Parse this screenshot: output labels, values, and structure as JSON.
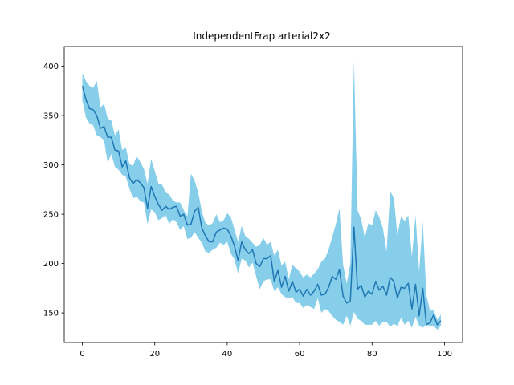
{
  "chart_data": {
    "type": "line",
    "title": "IndependentFrap arterial2x2",
    "xlabel": "",
    "ylabel": "",
    "xlim": [
      -5,
      105
    ],
    "ylim": [
      120,
      420
    ],
    "x_ticks": [
      0,
      20,
      40,
      60,
      80,
      100
    ],
    "y_ticks": [
      150,
      200,
      250,
      300,
      350,
      400
    ],
    "grid": false,
    "legend": "none",
    "colors": {
      "line": "#1f77b4",
      "band": "#87ceeb"
    },
    "series": [
      {
        "x": [
          0,
          1,
          2,
          3,
          4,
          5,
          6,
          7,
          8,
          9,
          10,
          11,
          12,
          13,
          14,
          15,
          16,
          17,
          18,
          19,
          20,
          21,
          22,
          23,
          24,
          25,
          26,
          27,
          28,
          29,
          30,
          31,
          32,
          33,
          34,
          35,
          36,
          37,
          38,
          39,
          40,
          41,
          42,
          43,
          44,
          45,
          46,
          47,
          48,
          49,
          50,
          51,
          52,
          53,
          54,
          55,
          56,
          57,
          58,
          59,
          60,
          61,
          62,
          63,
          64,
          65,
          66,
          67,
          68,
          69,
          70,
          71,
          72,
          73,
          74,
          75,
          76,
          77,
          78,
          79,
          80,
          81,
          82,
          83,
          84,
          85,
          86,
          87,
          88,
          89,
          90,
          91,
          92,
          93,
          94,
          95,
          96,
          97,
          98,
          99
        ],
        "mean": [
          380,
          366,
          357,
          356,
          350,
          337,
          339,
          328,
          328,
          315,
          314,
          298,
          304,
          287,
          281,
          285,
          282,
          277,
          256,
          278,
          268,
          260,
          254,
          258,
          255,
          257,
          258,
          248,
          250,
          239,
          240,
          253,
          257,
          236,
          228,
          222,
          222,
          232,
          234,
          236,
          235,
          228,
          218,
          203,
          222,
          214,
          210,
          214,
          200,
          197,
          205,
          205,
          208,
          182,
          193,
          176,
          187,
          172,
          182,
          171,
          174,
          167,
          174,
          168,
          172,
          179,
          168,
          169,
          176,
          187,
          184,
          194,
          167,
          160,
          162,
          237,
          174,
          178,
          166,
          172,
          169,
          182,
          173,
          177,
          168,
          186,
          182,
          165,
          176,
          175,
          180,
          154,
          179,
          147,
          175,
          138,
          140,
          148,
          138,
          142
        ],
        "upper": [
          393,
          385,
          380,
          378,
          385,
          358,
          362,
          347,
          345,
          330,
          336,
          315,
          318,
          301,
          299,
          309,
          303,
          296,
          281,
          306,
          294,
          281,
          280,
          272,
          270,
          264,
          262,
          262,
          254,
          248,
          291,
          284,
          272,
          253,
          241,
          239,
          241,
          250,
          242,
          244,
          251,
          247,
          235,
          222,
          238,
          228,
          225,
          221,
          217,
          219,
          226,
          219,
          222,
          208,
          214,
          198,
          202,
          184,
          199,
          195,
          192,
          186,
          189,
          186,
          190,
          194,
          202,
          205,
          214,
          227,
          240,
          256,
          199,
          180,
          200,
          406,
          254,
          245,
          226,
          241,
          239,
          254,
          247,
          236,
          212,
          273,
          267,
          229,
          248,
          243,
          249,
          207,
          249,
          192,
          243,
          168,
          152,
          153,
          143,
          148
        ],
        "lower": [
          365,
          348,
          342,
          340,
          330,
          328,
          325,
          302,
          311,
          298,
          295,
          290,
          288,
          276,
          266,
          268,
          263,
          262,
          240,
          255,
          252,
          244,
          246,
          249,
          240,
          245,
          242,
          234,
          238,
          225,
          226,
          232,
          226,
          221,
          212,
          211,
          214,
          216,
          221,
          219,
          222,
          210,
          204,
          190,
          205,
          203,
          196,
          201,
          187,
          174,
          182,
          184,
          184,
          172,
          176,
          169,
          166,
          165,
          166,
          160,
          160,
          155,
          158,
          156,
          154,
          165,
          150,
          154,
          152,
          147,
          143,
          141,
          138,
          147,
          137,
          151,
          144,
          142,
          138,
          138,
          138,
          142,
          137,
          141,
          141,
          136,
          139,
          137,
          145,
          138,
          142,
          135,
          146,
          137,
          135,
          138,
          137,
          137,
          133,
          137
        ]
      }
    ]
  }
}
